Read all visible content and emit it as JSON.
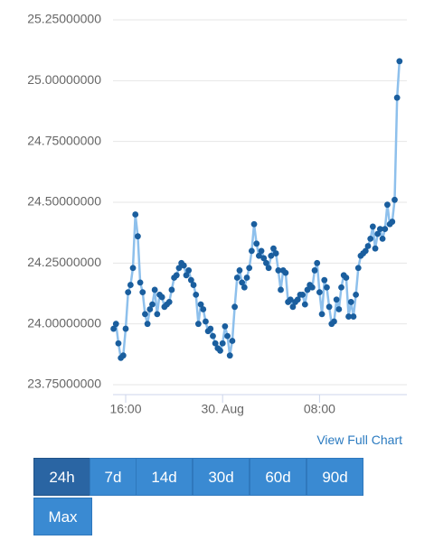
{
  "chart_data": {
    "type": "line",
    "x": [
      15,
      15.2,
      15.4,
      15.6,
      15.8,
      16,
      16.2,
      16.4,
      16.6,
      16.8,
      17,
      17.2,
      17.4,
      17.6,
      17.8,
      18,
      18.2,
      18.4,
      18.6,
      18.8,
      19,
      19.2,
      19.4,
      19.6,
      19.8,
      20,
      20.2,
      20.4,
      20.6,
      20.8,
      21,
      21.2,
      21.4,
      21.6,
      21.8,
      22,
      22.2,
      22.4,
      22.6,
      22.8,
      23,
      23.2,
      23.4,
      23.6,
      23.8,
      24,
      24.2,
      24.4,
      24.6,
      24.8,
      25,
      25.2,
      25.4,
      25.6,
      25.8,
      26,
      26.2,
      26.4,
      26.6,
      26.8,
      27,
      27.2,
      27.4,
      27.6,
      27.8,
      28,
      28.2,
      28.4,
      28.6,
      28.8,
      29,
      29.2,
      29.4,
      29.6,
      29.8,
      30,
      30.2,
      30.4,
      30.6,
      30.8,
      31,
      31.2,
      31.4,
      31.6,
      31.8,
      32,
      32.2,
      32.4,
      32.6,
      32.8,
      33,
      33.2,
      33.4,
      33.6,
      33.8,
      34,
      34.2,
      34.4,
      34.6,
      34.8,
      35,
      35.2,
      35.4,
      35.6,
      35.8,
      36,
      36.2,
      36.4,
      36.6,
      36.8,
      37,
      37.2,
      37.4,
      37.6,
      37.8,
      38,
      38.2,
      38.4,
      38.6
    ],
    "values": [
      23.98,
      24.0,
      23.92,
      23.86,
      23.87,
      23.98,
      24.13,
      24.16,
      24.23,
      24.45,
      24.36,
      24.17,
      24.13,
      24.04,
      24.0,
      24.06,
      24.08,
      24.14,
      24.04,
      24.12,
      24.11,
      24.07,
      24.08,
      24.09,
      24.14,
      24.19,
      24.2,
      24.23,
      24.25,
      24.24,
      24.2,
      24.22,
      24.18,
      24.16,
      24.12,
      24.0,
      24.08,
      24.06,
      24.01,
      23.97,
      23.98,
      23.95,
      23.92,
      23.9,
      23.89,
      23.92,
      23.99,
      23.95,
      23.87,
      23.93,
      24.07,
      24.19,
      24.22,
      24.17,
      24.15,
      24.19,
      24.23,
      24.3,
      24.41,
      24.33,
      24.28,
      24.3,
      24.27,
      24.25,
      24.23,
      24.28,
      24.31,
      24.29,
      24.22,
      24.14,
      24.22,
      24.21,
      24.09,
      24.1,
      24.07,
      24.09,
      24.1,
      24.12,
      24.12,
      24.08,
      24.14,
      24.16,
      24.15,
      24.22,
      24.25,
      24.13,
      24.04,
      24.18,
      24.15,
      24.07,
      24.0,
      24.01,
      24.1,
      24.06,
      24.15,
      24.2,
      24.19,
      24.03,
      24.09,
      24.03,
      24.12,
      24.23,
      24.28,
      24.29,
      24.3,
      24.32,
      24.35,
      24.4,
      24.31,
      24.37,
      24.39,
      24.35,
      24.39,
      24.49,
      24.41,
      24.42,
      24.51,
      24.93,
      25.08
    ],
    "color": "#8ec0ec",
    "marker_color": "#1a5e9e",
    "xlim": [
      15,
      39
    ],
    "xticks": [
      {
        "value": 16,
        "label": "16:00"
      },
      {
        "value": 24,
        "label": "30. Aug"
      },
      {
        "value": 32,
        "label": "08:00"
      }
    ],
    "ylim": [
      23.75,
      25.25
    ],
    "yticks": [
      {
        "value": 23.75,
        "label": "23.75000000"
      },
      {
        "value": 24,
        "label": "24.00000000"
      },
      {
        "value": 24.25,
        "label": "24.25000000"
      },
      {
        "value": 24.5,
        "label": "24.50000000"
      },
      {
        "value": 24.75,
        "label": "24.75000000"
      },
      {
        "value": 25,
        "label": "25.00000000"
      },
      {
        "value": 25.25,
        "label": "25.25000000"
      }
    ],
    "grid": true
  },
  "link": "View Full Chart",
  "range_buttons": [
    "24h",
    "7d",
    "14d",
    "30d",
    "60d",
    "90d",
    "Max"
  ]
}
